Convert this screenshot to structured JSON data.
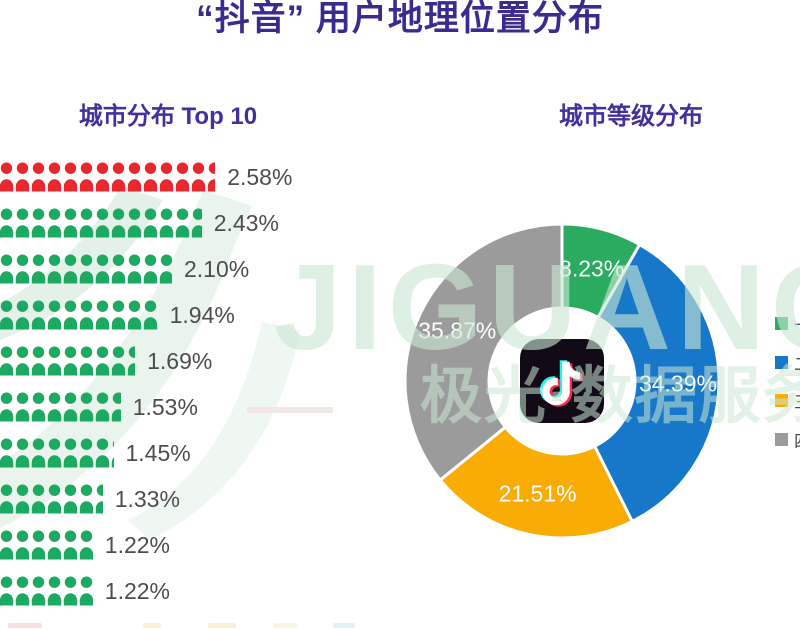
{
  "page": {
    "title": "“抖音” 用户地理位置分布"
  },
  "sections": {
    "left_title": "城市分布 Top 10",
    "right_title": "城市等级分布"
  },
  "watermark": {
    "brand": "JIGUANG",
    "brand_cn": "极光·数据服务"
  },
  "chart_data": [
    {
      "type": "bar",
      "style": "pictogram-person-icons",
      "title": "城市分布 Top 10",
      "unit": "%",
      "values": [
        2.58,
        2.43,
        2.1,
        1.94,
        1.69,
        1.53,
        1.45,
        1.33,
        1.22,
        1.22
      ],
      "labels": [
        "2.58%",
        "2.43%",
        "2.10%",
        "1.94%",
        "1.69%",
        "1.53%",
        "1.45%",
        "1.33%",
        "1.22%",
        "1.22%"
      ],
      "bar_colors": [
        "#e8282e",
        "#1ca961",
        "#1ca961",
        "#1ca961",
        "#1ca961",
        "#1ca961",
        "#1ca961",
        "#1ca961",
        "#1ca961",
        "#1ca961"
      ],
      "note": "city category names are cropped off the left edge of the screenshot"
    },
    {
      "type": "pie",
      "donut": true,
      "title": "城市等级分布",
      "values": [
        8.23,
        34.39,
        21.51,
        35.87
      ],
      "labels": [
        "8.23%",
        "34.39%",
        "21.51%",
        "35.87%"
      ],
      "colors": [
        "#2aab5f",
        "#1777c8",
        "#f9ac04",
        "#9b9b9b"
      ],
      "start_angle_deg": 0,
      "clockwise": true,
      "center_icon": "douyin-logo",
      "legend": [
        {
          "color": "#2aab5f",
          "label": "一"
        },
        {
          "color": "#1777c8",
          "label": "二"
        },
        {
          "color": "#f9ac04",
          "label": "三"
        },
        {
          "color": "#9b9b9b",
          "label": "四"
        }
      ],
      "legend_note": "legend labels are cropped at the right edge of the screenshot"
    }
  ]
}
